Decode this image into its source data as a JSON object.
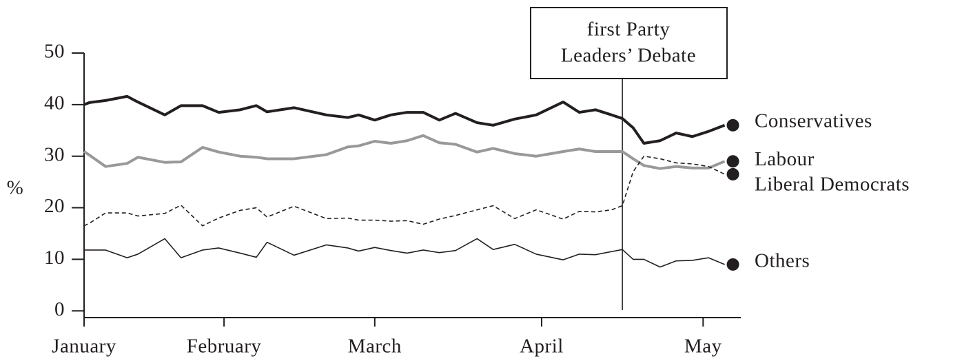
{
  "chart_data": {
    "type": "line",
    "ylabel": "%",
    "x": [
      6,
      7,
      10,
      14,
      16,
      21,
      24,
      28,
      31,
      35,
      38,
      40,
      45,
      51,
      55,
      57,
      60,
      63,
      66,
      69,
      72,
      75,
      79,
      82,
      86,
      90,
      95,
      98,
      101,
      104,
      106,
      108,
      110,
      113,
      116,
      119,
      122,
      125
    ],
    "xlim": [
      6,
      128
    ],
    "xticks": [
      {
        "value": 6,
        "label": "January"
      },
      {
        "value": 32,
        "label": "February"
      },
      {
        "value": 60,
        "label": "March"
      },
      {
        "value": 91,
        "label": "April"
      },
      {
        "value": 121,
        "label": "May"
      }
    ],
    "ylim": [
      -1.3,
      50
    ],
    "yticks": [
      0,
      10,
      20,
      30,
      40,
      50
    ],
    "annotation": {
      "text": [
        "first Party",
        "Leaders’ Debate"
      ],
      "x": 106
    },
    "series": [
      {
        "name": "Conservatives",
        "color": "#231f20",
        "width": 4,
        "dash": false,
        "values": [
          40,
          40.4,
          40.8,
          41.6,
          40.5,
          38,
          39.8,
          39.8,
          38.5,
          39,
          39.8,
          38.6,
          39.4,
          38,
          37.5,
          38,
          37,
          38,
          38.5,
          38.5,
          37,
          38.3,
          36.5,
          36,
          37.2,
          38,
          40.5,
          38.5,
          39,
          38,
          37.3,
          35.5,
          32.5,
          33,
          34.5,
          33.8,
          34.8,
          36
        ]
      },
      {
        "name": "Labour",
        "color": "#999999",
        "width": 4,
        "dash": false,
        "values": [
          30.9,
          30.2,
          28,
          28.6,
          29.8,
          28.8,
          28.9,
          31.7,
          30.8,
          30,
          29.8,
          29.5,
          29.5,
          30.3,
          31.8,
          32,
          32.9,
          32.5,
          33,
          34,
          32.6,
          32.3,
          30.8,
          31.5,
          30.5,
          30,
          30.9,
          31.4,
          30.9,
          30.9,
          30.9,
          29.5,
          28.2,
          27.6,
          28,
          27.7,
          27.7,
          29
        ]
      },
      {
        "name": "Liberal Democrats",
        "color": "#231f20",
        "width": 1.6,
        "dash": true,
        "values": [
          16.5,
          17,
          19,
          19,
          18.4,
          18.9,
          20.5,
          16.5,
          18,
          19.5,
          20,
          18.2,
          20.3,
          17.9,
          18,
          17.6,
          17.6,
          17.4,
          17.5,
          16.8,
          17.8,
          18.5,
          19.6,
          20.4,
          17.9,
          19.6,
          17.8,
          19.3,
          19.2,
          19.6,
          20.4,
          27,
          30,
          29.5,
          28.7,
          28.5,
          28,
          26.5
        ]
      },
      {
        "name": "Others",
        "color": "#231f20",
        "width": 1.6,
        "dash": false,
        "values": [
          11.8,
          11.8,
          11.8,
          10.3,
          11,
          14,
          10.3,
          11.8,
          12.2,
          11.2,
          10.4,
          13.3,
          10.8,
          12.8,
          12.2,
          11.6,
          12.3,
          11.7,
          11.2,
          11.8,
          11.3,
          11.7,
          14,
          11.9,
          12.9,
          11,
          9.9,
          11,
          10.9,
          11.5,
          11.9,
          10,
          10,
          8.5,
          9.7,
          9.8,
          10.3,
          9
        ]
      }
    ]
  }
}
